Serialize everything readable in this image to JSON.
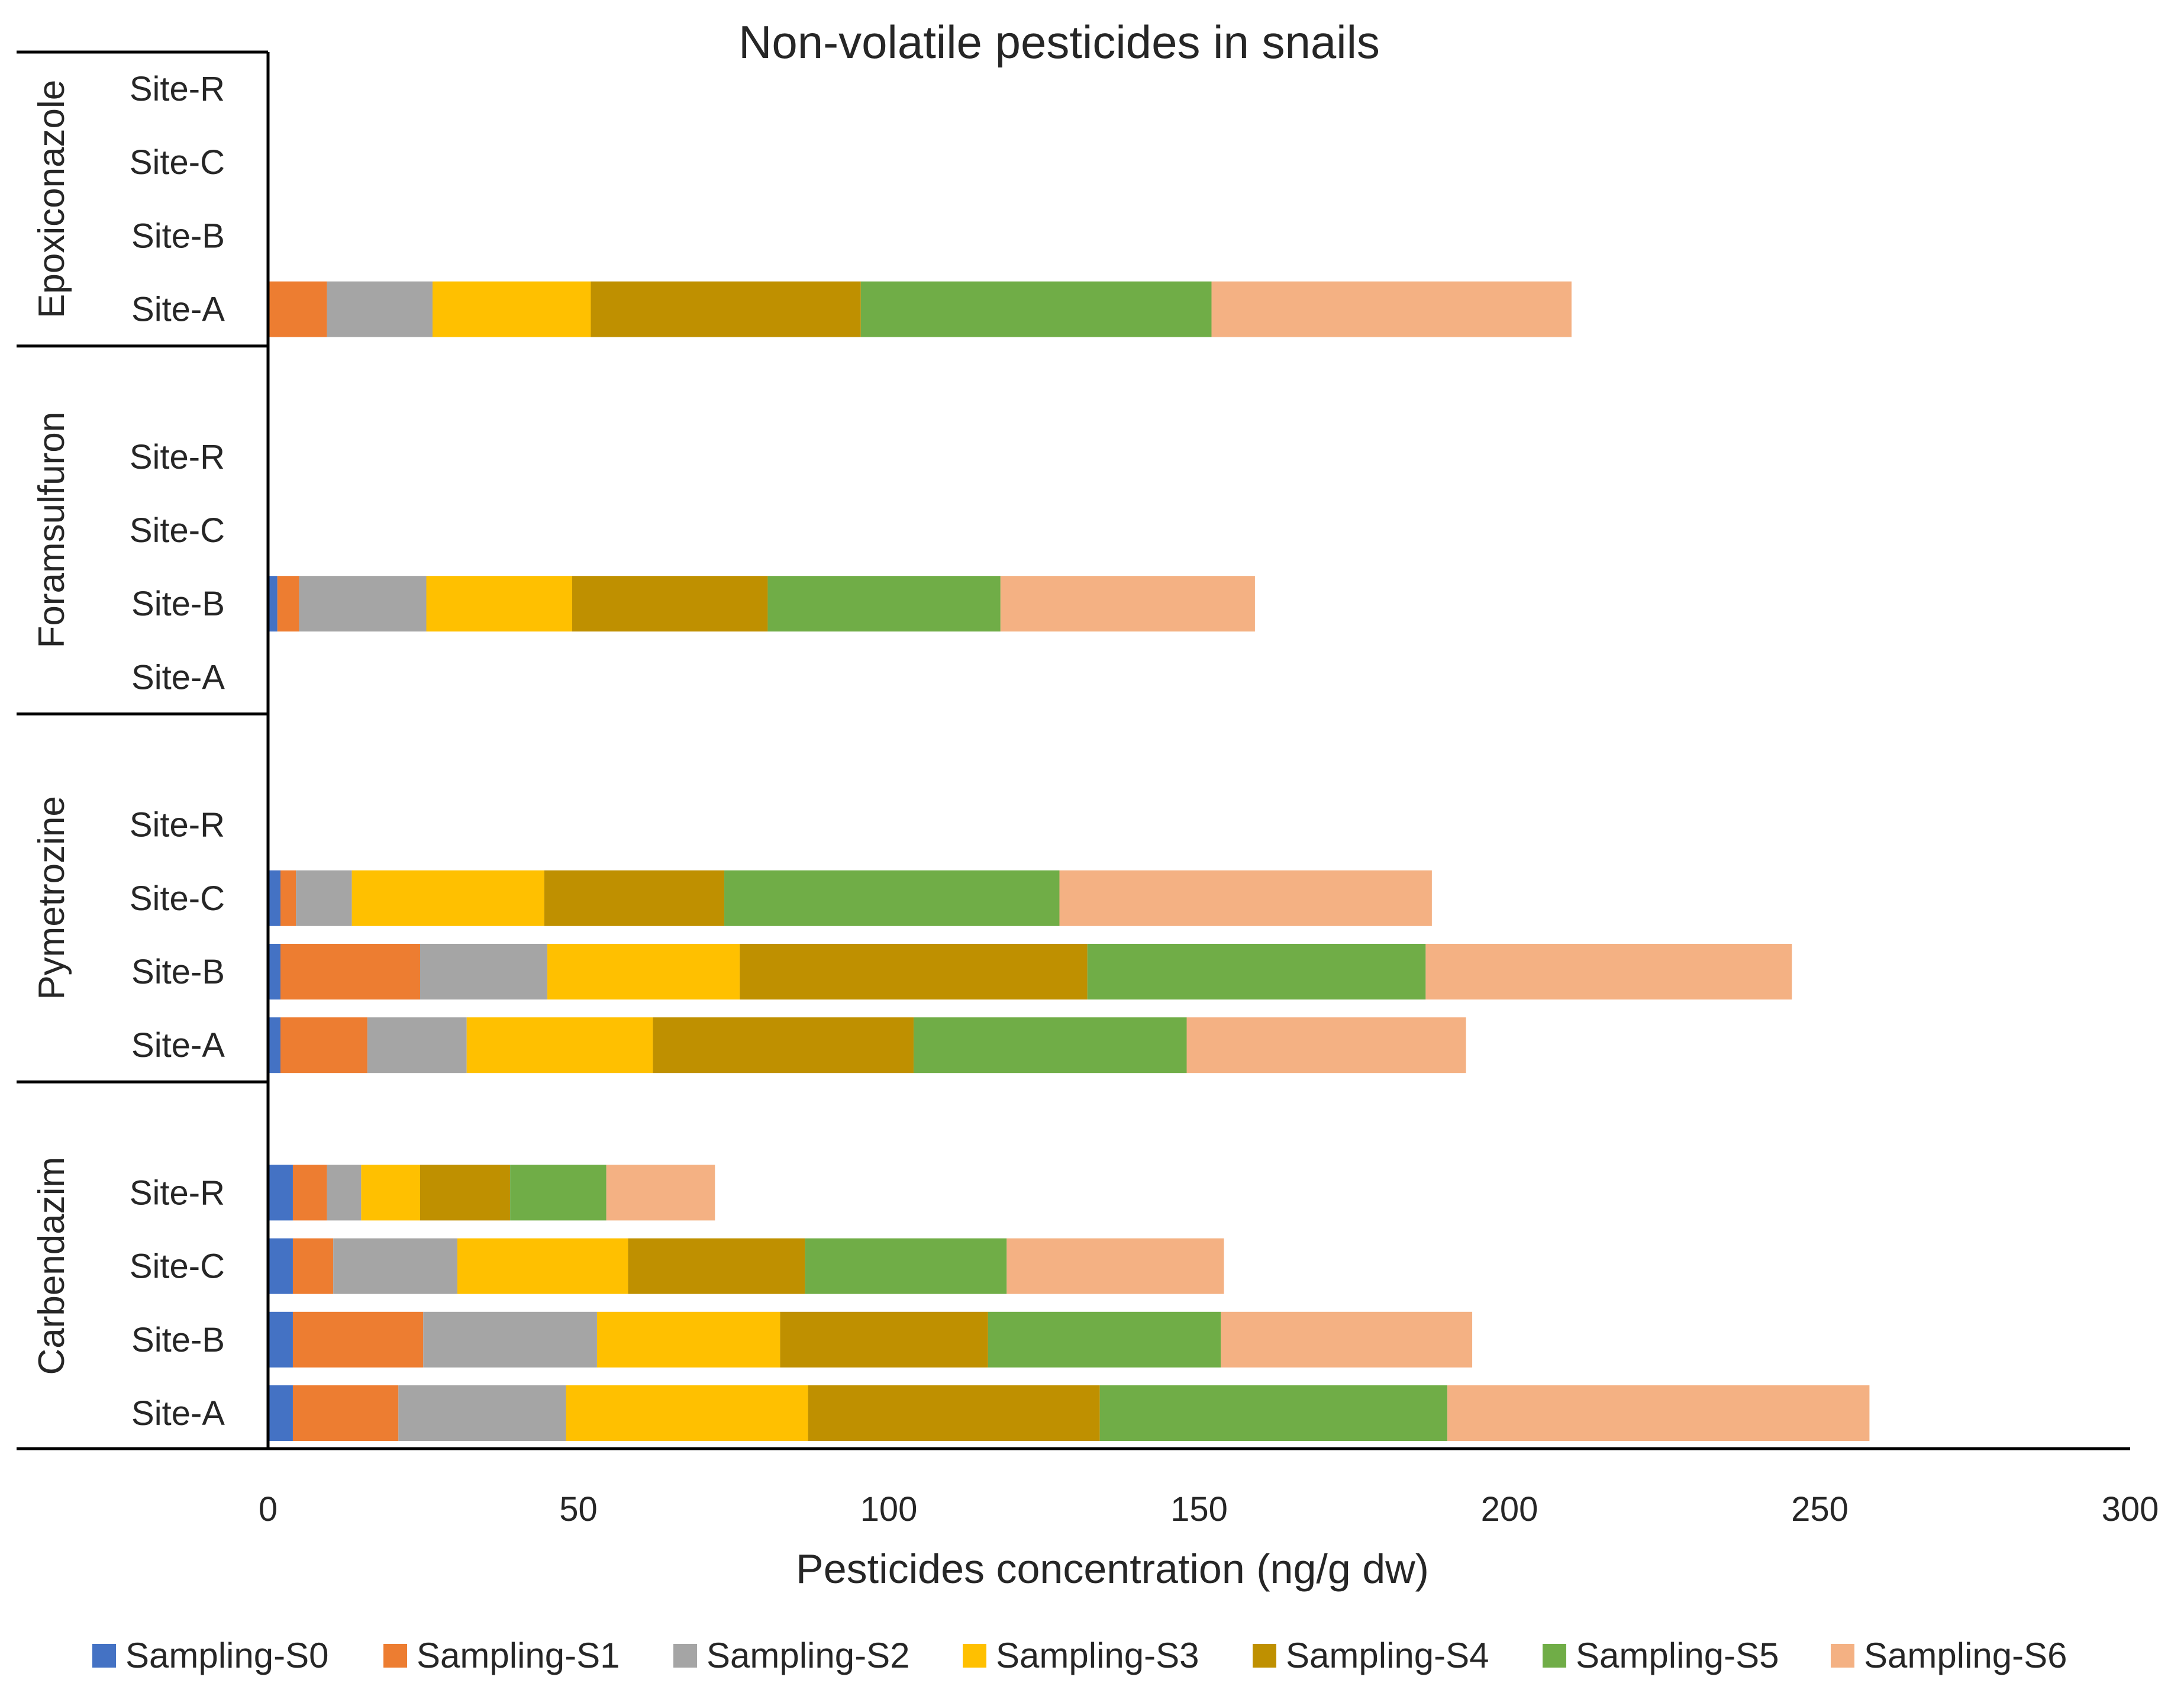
{
  "chart_data": {
    "type": "bar",
    "orientation": "horizontal",
    "stacked": true,
    "title": "Non-volatile pesticides in snails",
    "xlabel": "Pesticides  concentration (ng/g dw)",
    "ylabel": "",
    "xlim": [
      0,
      300
    ],
    "xticks": [
      "0",
      "50",
      "100",
      "150",
      "200",
      "250",
      "300"
    ],
    "grid": false,
    "legend_position": "bottom",
    "groups": [
      {
        "name": "Epoxiconazole",
        "sites": [
          {
            "label": "Site-R",
            "values": [
              0,
              0,
              0,
              0,
              0,
              0,
              0
            ]
          },
          {
            "label": "Site-C",
            "values": [
              0,
              0,
              0,
              0,
              0,
              0,
              0
            ]
          },
          {
            "label": "Site-B",
            "values": [
              0,
              0,
              0,
              0,
              0,
              0,
              0
            ]
          },
          {
            "label": "Site-A",
            "values": [
              0,
              9.5,
              17,
              25.5,
              43.5,
              56.5,
              58
            ]
          }
        ]
      },
      {
        "name": "Foramsulfuron",
        "sites": [
          {
            "label": "Site-R",
            "values": [
              0,
              0,
              0,
              0,
              0,
              0,
              0
            ]
          },
          {
            "label": "Site-C",
            "values": [
              0,
              0,
              0,
              0,
              0,
              0,
              0
            ]
          },
          {
            "label": "Site-B",
            "values": [
              1.5,
              3.5,
              20.5,
              23.5,
              31.5,
              37.5,
              41
            ]
          },
          {
            "label": "Site-A",
            "values": [
              0,
              0,
              0,
              0,
              0,
              0,
              0
            ]
          }
        ]
      },
      {
        "name": "Pymetrozine",
        "sites": [
          {
            "label": "Site-R",
            "values": [
              0,
              0,
              0,
              0,
              0,
              0,
              0
            ]
          },
          {
            "label": "Site-C",
            "values": [
              2,
              2.5,
              9,
              31,
              29,
              54,
              60
            ]
          },
          {
            "label": "Site-B",
            "values": [
              2,
              22.5,
              20.5,
              31,
              56,
              54.5,
              59
            ]
          },
          {
            "label": "Site-A",
            "values": [
              2,
              14,
              16,
              30,
              42,
              44,
              45
            ]
          }
        ]
      },
      {
        "name": "Carbendazim",
        "sites": [
          {
            "label": "Site-R",
            "values": [
              4,
              5.5,
              5.5,
              9.5,
              14.5,
              15.5,
              17.5
            ]
          },
          {
            "label": "Site-C",
            "values": [
              4,
              6.5,
              20,
              27.5,
              28.5,
              32.5,
              35
            ]
          },
          {
            "label": "Site-B",
            "values": [
              4,
              21,
              28,
              29.5,
              33.5,
              37.5,
              40.5
            ]
          },
          {
            "label": "Site-A",
            "values": [
              4,
              17,
              27,
              39,
              47,
              56,
              68
            ]
          }
        ]
      }
    ],
    "series": [
      {
        "name": "Sampling-S0",
        "color": "#4472C4"
      },
      {
        "name": "Sampling-S1",
        "color": "#ED7D31"
      },
      {
        "name": "Sampling-S2",
        "color": "#A5A5A5"
      },
      {
        "name": "Sampling-S3",
        "color": "#FFC000"
      },
      {
        "name": "Sampling-S4",
        "color": "#BF9000"
      },
      {
        "name": "Sampling-S5",
        "color": "#70AD47"
      },
      {
        "name": "Sampling-S6",
        "color": "#F4B183"
      }
    ]
  }
}
